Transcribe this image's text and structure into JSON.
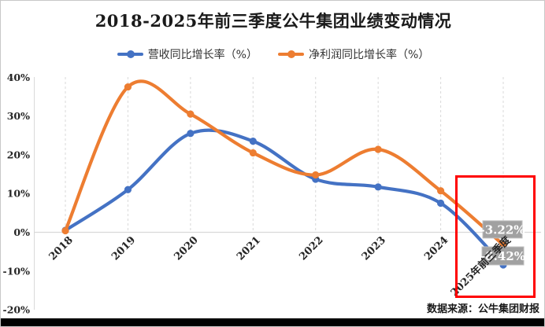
{
  "title": "2018-2025年前三季度公牛集团业绩变动情况",
  "source_note": "数据来源：公牛集团财报",
  "colors": {
    "revenue": "#4472C4",
    "profit": "#ED7D31",
    "grid": "#D9D9D9",
    "axis_line": "#D9D9D9",
    "tick_text": "#262626",
    "label_box_bg": "#A1A1A1",
    "label_box_border": "#BFBFBF",
    "label_text": "#FFFFFF",
    "highlight_box": "#FF0000",
    "bottom_bar": "#000000"
  },
  "chart_data": {
    "type": "line",
    "title": "2018-2025年前三季度公牛集团业绩变动情况",
    "categories": [
      "2018",
      "2019",
      "2020",
      "2021",
      "2022",
      "2023",
      "2024",
      "2025年前三季度"
    ],
    "series": [
      {
        "name": "营收同比增长率（%）",
        "color": "#4472C4",
        "values": [
          0.5,
          11.0,
          25.5,
          23.5,
          13.7,
          11.7,
          7.5,
          -8.42
        ],
        "end_label": "-8.42%"
      },
      {
        "name": "净利润同比增长率（%）",
        "color": "#ED7D31",
        "values": [
          0.4,
          37.5,
          30.5,
          20.5,
          14.8,
          21.4,
          10.7,
          -3.22
        ],
        "end_label": "-3.22%"
      }
    ],
    "yticks": [
      40,
      30,
      20,
      10,
      0,
      -10,
      -20
    ],
    "ytick_labels": [
      "40%",
      "30%",
      "20%",
      "10%",
      "0%",
      "-10%",
      "-20%"
    ],
    "ylim": [
      -20,
      40
    ],
    "xlabel": "",
    "ylabel": "",
    "grid": "vertical-dashed",
    "legend_position": "top",
    "smooth": true,
    "annotations": [
      "红色方框标注2025年前三季度数据区域"
    ]
  }
}
